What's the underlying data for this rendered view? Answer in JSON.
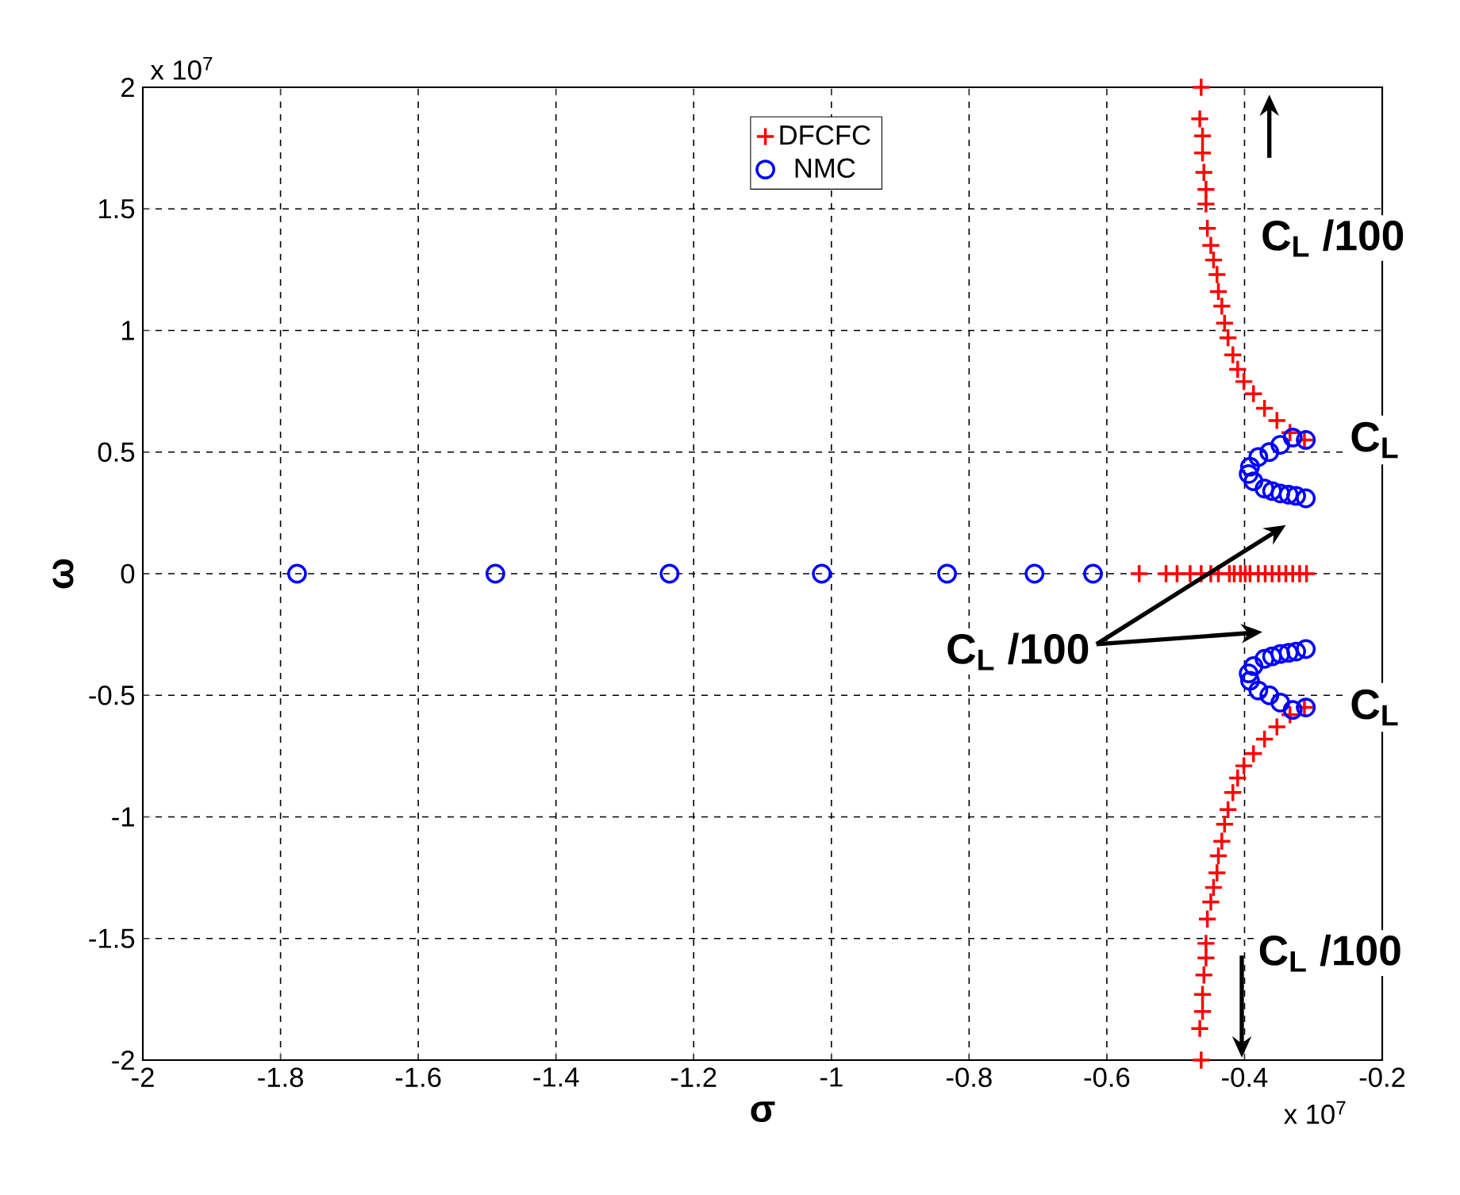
{
  "chart_data": {
    "type": "scatter",
    "xlabel": "σ",
    "ylabel": "ω",
    "xlim": [
      -2,
      -0.2
    ],
    "ylim": [
      -2,
      2
    ],
    "xticks": [
      -2,
      -1.8,
      -1.6,
      -1.4,
      -1.2,
      -1,
      -0.8,
      -0.6,
      -0.4,
      -0.2
    ],
    "yticks": [
      -2,
      -1.5,
      -1,
      -0.5,
      0,
      0.5,
      1,
      1.5,
      2
    ],
    "grid": true,
    "legend": "top",
    "series": [
      {
        "name": "DFCFC",
        "color": "#ff0000",
        "marker": "cross",
        "x": [
          -0.553,
          -0.514,
          -0.498,
          -0.479,
          -0.463,
          -0.449,
          -0.438,
          -0.422,
          -0.415,
          -0.406,
          -0.399,
          -0.392,
          -0.38,
          -0.37,
          -0.36,
          -0.35,
          -0.34,
          -0.33,
          -0.32,
          -0.31,
          -0.463,
          -0.465,
          -0.461,
          -0.461,
          -0.459,
          -0.456,
          -0.456,
          -0.454,
          -0.449,
          -0.445,
          -0.44,
          -0.438,
          -0.433,
          -0.429,
          -0.424,
          -0.417,
          -0.41,
          -0.401,
          -0.387,
          -0.371,
          -0.353,
          -0.334,
          -0.313,
          -0.463,
          -0.465,
          -0.461,
          -0.461,
          -0.459,
          -0.456,
          -0.456,
          -0.454,
          -0.449,
          -0.445,
          -0.44,
          -0.438,
          -0.433,
          -0.429,
          -0.424,
          -0.417,
          -0.41,
          -0.401,
          -0.387,
          -0.371,
          -0.353,
          -0.334,
          -0.313
        ],
        "values": [
          0,
          0,
          0,
          0,
          0,
          0,
          0,
          0,
          0,
          0,
          0,
          0,
          0,
          0,
          0,
          0,
          0,
          0,
          0,
          0,
          2.0,
          1.87,
          1.8,
          1.73,
          1.65,
          1.58,
          1.52,
          1.42,
          1.35,
          1.29,
          1.23,
          1.16,
          1.1,
          1.03,
          0.97,
          0.9,
          0.84,
          0.79,
          0.74,
          0.68,
          0.63,
          0.58,
          0.55,
          -2.0,
          -1.87,
          -1.8,
          -1.73,
          -1.65,
          -1.58,
          -1.52,
          -1.42,
          -1.35,
          -1.29,
          -1.23,
          -1.16,
          -1.1,
          -1.03,
          -0.97,
          -0.9,
          -0.84,
          -0.79,
          -0.74,
          -0.68,
          -0.63,
          -0.58,
          -0.55
        ]
      },
      {
        "name": "NMC",
        "color": "#0000ff",
        "marker": "circle",
        "x": [
          -1.776,
          -1.488,
          -1.235,
          -1.014,
          -0.832,
          -0.705,
          -0.62,
          -0.311,
          -0.33,
          -0.348,
          -0.364,
          -0.38,
          -0.392,
          -0.394,
          -0.387,
          -0.371,
          -0.36,
          -0.348,
          -0.336,
          -0.325,
          -0.311,
          -0.311,
          -0.33,
          -0.348,
          -0.364,
          -0.38,
          -0.392,
          -0.394,
          -0.387,
          -0.371,
          -0.36,
          -0.348,
          -0.336,
          -0.325,
          -0.311
        ],
        "values": [
          0,
          0,
          0,
          0,
          0,
          0,
          0,
          0.55,
          0.56,
          0.53,
          0.5,
          0.48,
          0.44,
          0.41,
          0.38,
          0.35,
          0.34,
          0.33,
          0.325,
          0.32,
          0.31,
          -0.55,
          -0.56,
          -0.53,
          -0.5,
          -0.48,
          -0.44,
          -0.41,
          -0.38,
          -0.35,
          -0.34,
          -0.33,
          -0.325,
          -0.32,
          -0.31
        ]
      }
    ],
    "annotations": [
      "x 10$^{7}$",
      "C$_{L}$ /100",
      {
        "text": "C$_{L}$",
        "x": -0.31,
        "y": 0.55
      },
      "C$_{L}$ /100",
      {
        "text": "C$_{L}$",
        "x": -0.31,
        "y": -0.55
      },
      "C$_{L}$ /100",
      "x 10$^{7}$"
    ]
  }
}
